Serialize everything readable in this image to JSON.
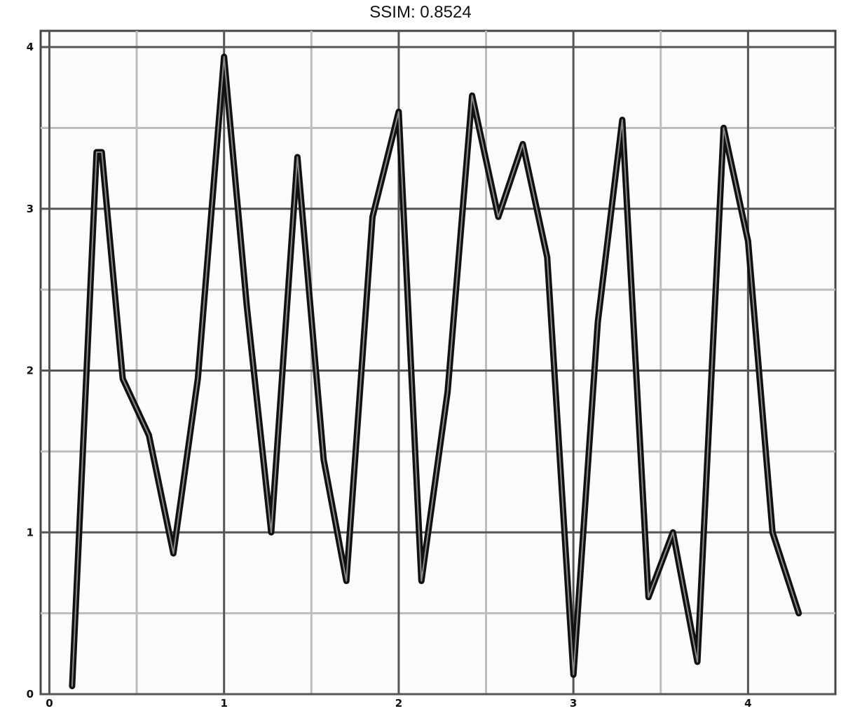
{
  "chart_data": {
    "type": "line",
    "title": "SSIM: 0.8524",
    "xlabel": "",
    "ylabel": "",
    "xlim": [
      -0.05,
      4.5
    ],
    "ylim": [
      0.0,
      4.1
    ],
    "x_ticks": [
      0,
      1,
      2,
      3,
      4
    ],
    "y_ticks": [
      0,
      1,
      2,
      3,
      4
    ],
    "grid": true,
    "series": [
      {
        "x": [
          0.13,
          0.27,
          0.3,
          0.42,
          0.57,
          0.71,
          0.85,
          1.0,
          1.13,
          1.27,
          1.42,
          1.57,
          1.7,
          1.85,
          2.0,
          2.13,
          2.28,
          2.42,
          2.57,
          2.71,
          2.85,
          3.0,
          3.14,
          3.28,
          3.43,
          3.57,
          3.71,
          3.86,
          4.0,
          4.14,
          4.29
        ],
        "y": [
          0.05,
          3.35,
          3.35,
          1.95,
          1.6,
          0.87,
          1.95,
          3.94,
          2.4,
          1.0,
          3.32,
          1.45,
          0.7,
          2.95,
          3.6,
          0.7,
          1.87,
          3.7,
          2.95,
          3.4,
          2.7,
          0.12,
          2.3,
          3.55,
          0.6,
          1.0,
          0.2,
          3.5,
          2.8,
          1.0,
          0.5
        ]
      }
    ]
  }
}
